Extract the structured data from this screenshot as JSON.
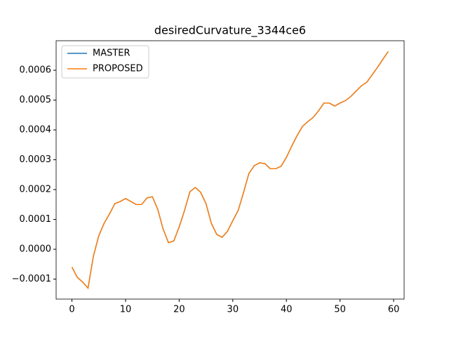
{
  "chart_data": {
    "type": "line",
    "title": "desiredCurvature_3344ce6",
    "x": [
      0,
      1,
      2,
      3,
      4,
      5,
      6,
      7,
      8,
      9,
      10,
      11,
      12,
      13,
      14,
      15,
      16,
      17,
      18,
      19,
      20,
      21,
      22,
      23,
      24,
      25,
      26,
      27,
      28,
      29,
      30,
      31,
      32,
      33,
      34,
      35,
      36,
      37,
      38,
      39,
      40,
      41,
      42,
      43,
      44,
      45,
      46,
      47,
      48,
      49,
      50,
      51,
      52,
      53,
      54,
      55,
      56,
      57,
      58,
      59
    ],
    "series": [
      {
        "name": "MASTER",
        "color": "#1f77b4",
        "values": [
          -6e-05,
          -9.4e-05,
          -0.00011,
          -0.00013,
          -2.3e-05,
          4.5e-05,
          8.7e-05,
          0.000118,
          0.000153,
          0.00016,
          0.00017,
          0.00016,
          0.00015,
          0.00015,
          0.000172,
          0.000176,
          0.000134,
          6.8e-05,
          2.2e-05,
          2.8e-05,
          7.5e-05,
          0.00013,
          0.000193,
          0.000207,
          0.000191,
          0.000153,
          8.7e-05,
          5e-05,
          4e-05,
          6e-05,
          9.6e-05,
          0.00013,
          0.00019,
          0.000254,
          0.00028,
          0.00029,
          0.000287,
          0.00027,
          0.00027,
          0.000278,
          0.000308,
          0.000346,
          0.000381,
          0.000412,
          0.000428,
          0.000442,
          0.000464,
          0.00049,
          0.00049,
          0.00048,
          0.00049,
          0.000498,
          0.000512,
          0.00053,
          0.000548,
          0.00056,
          0.000585,
          0.00061,
          0.000637,
          0.000663
        ]
      },
      {
        "name": "PROPOSED",
        "color": "#ff7f0e",
        "values": [
          -6e-05,
          -9.4e-05,
          -0.00011,
          -0.00013,
          -2.3e-05,
          4.5e-05,
          8.7e-05,
          0.000118,
          0.000153,
          0.00016,
          0.00017,
          0.00016,
          0.00015,
          0.00015,
          0.000172,
          0.000176,
          0.000134,
          6.8e-05,
          2.2e-05,
          2.8e-05,
          7.5e-05,
          0.00013,
          0.000193,
          0.000207,
          0.000191,
          0.000153,
          8.7e-05,
          5e-05,
          4e-05,
          6e-05,
          9.6e-05,
          0.00013,
          0.00019,
          0.000254,
          0.00028,
          0.00029,
          0.000287,
          0.00027,
          0.00027,
          0.000278,
          0.000308,
          0.000346,
          0.000381,
          0.000412,
          0.000428,
          0.000442,
          0.000464,
          0.00049,
          0.00049,
          0.00048,
          0.00049,
          0.000498,
          0.000512,
          0.00053,
          0.000548,
          0.00056,
          0.000585,
          0.00061,
          0.000637,
          0.000663
        ]
      }
    ],
    "xlim": [
      -2.95,
      61.95
    ],
    "xticks": [
      0,
      10,
      20,
      30,
      40,
      50,
      60
    ],
    "ylim": [
      -0.000167,
      0.000699
    ],
    "yticks": [
      {
        "value": -0.0001,
        "label": "−0.0001"
      },
      {
        "value": 0,
        "label": "0.0000"
      },
      0.0001,
      0.0002,
      0.0003,
      0.0004,
      0.0005,
      0.0006
    ],
    "legend": "upper left"
  }
}
